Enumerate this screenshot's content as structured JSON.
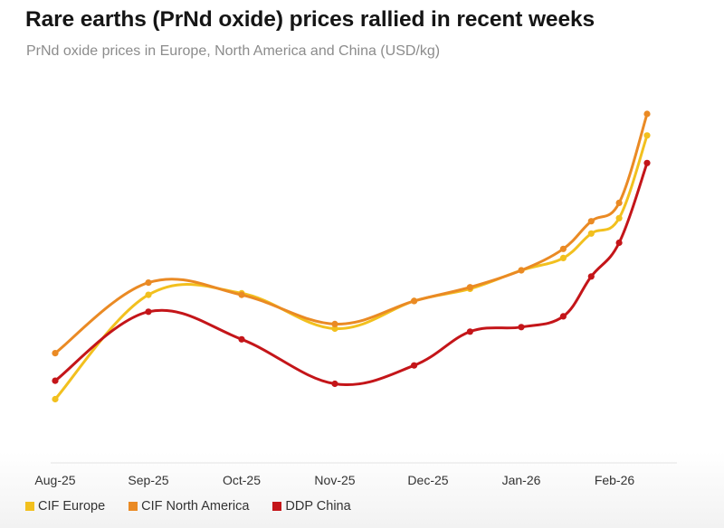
{
  "header": {
    "title": "Rare earths (PrNd oxide) prices rallied in recent weeks",
    "subtitle": "PrNd oxide prices in Europe, North America and China (USD/kg)"
  },
  "legend": {
    "items": [
      {
        "label": "CIF Europe",
        "color": "#f2c01e"
      },
      {
        "label": "CIF North America",
        "color": "#ea8a24"
      },
      {
        "label": "DDP China",
        "color": "#c41519"
      }
    ]
  },
  "chart_data": {
    "type": "line",
    "title": "Rare earths (PrNd oxide) prices rallied in recent weeks",
    "subtitle": "PrNd oxide prices in Europe, North America and China (USD/kg)",
    "xlabel": "",
    "ylabel": "",
    "grid": false,
    "legend_position": "bottom-left",
    "y_axis_labels_shown": false,
    "x_ticks": [
      "Aug-25",
      "Sep-25",
      "Oct-25",
      "Nov-25",
      "Dec-25",
      "Jan-26",
      "Feb-26"
    ],
    "x_tick_positions": [
      0,
      1,
      2,
      3,
      4,
      5,
      6
    ],
    "x_range": [
      -0.05,
      6.6
    ],
    "y_range": [
      0,
      100
    ],
    "series": [
      {
        "name": "CIF Europe",
        "color": "#f2c01e",
        "x": [
          0,
          1,
          2,
          3,
          3.85,
          4.45,
          5.0,
          5.45,
          5.75,
          6.05,
          6.35
        ],
        "y": [
          9,
          43,
          43.5,
          32,
          41,
          45,
          51,
          55,
          63,
          68,
          95
        ]
      },
      {
        "name": "CIF North America",
        "color": "#ea8a24",
        "x": [
          0,
          1,
          2,
          3,
          3.85,
          4.45,
          5.0,
          5.45,
          5.75,
          6.05,
          6.35
        ],
        "y": [
          24,
          47,
          43,
          33.5,
          41,
          45.5,
          51,
          58,
          67,
          73,
          102
        ]
      },
      {
        "name": "DDP China",
        "color": "#c41519",
        "x": [
          0,
          1,
          2,
          3,
          3.85,
          4.45,
          5.0,
          5.45,
          5.75,
          6.05,
          6.35
        ],
        "y": [
          15,
          37.5,
          28.5,
          14,
          20,
          31,
          32.5,
          36,
          49,
          60,
          86
        ]
      }
    ]
  }
}
